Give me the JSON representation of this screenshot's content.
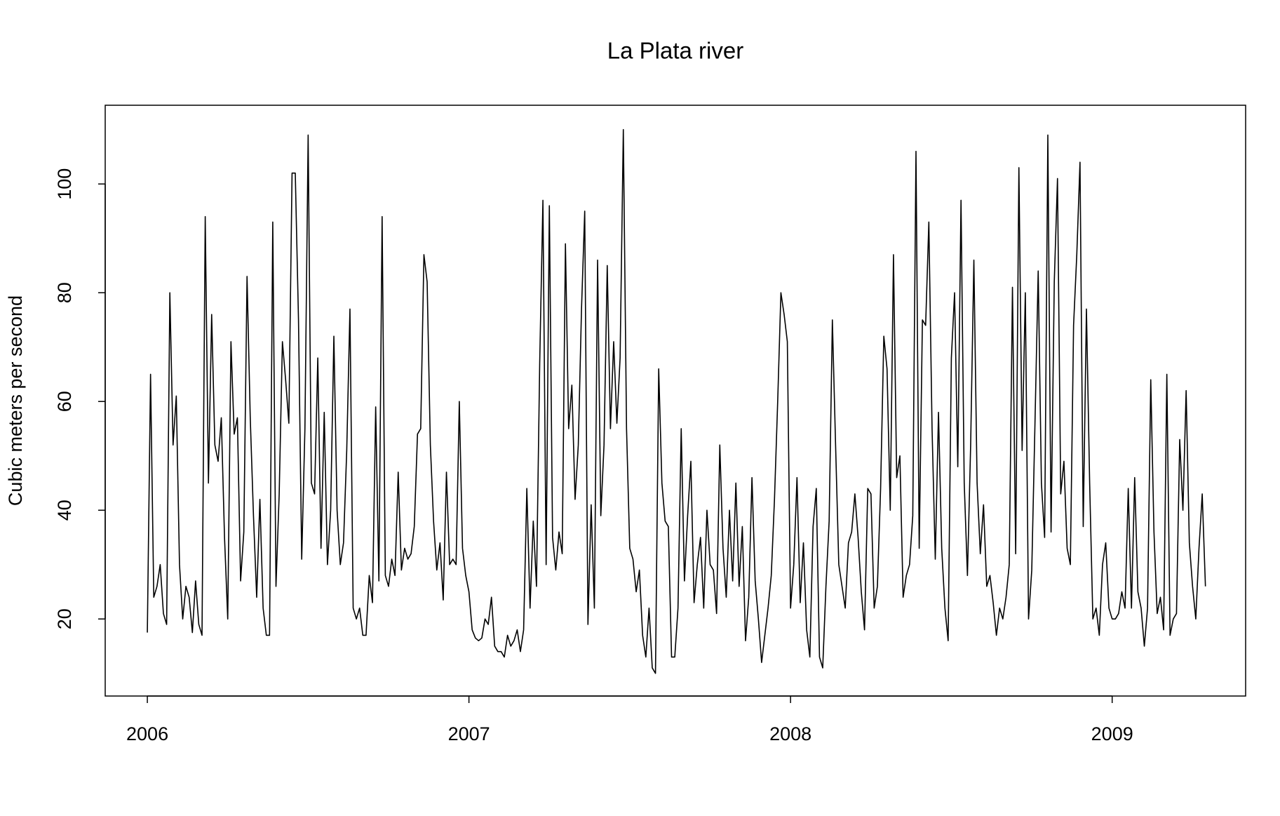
{
  "chart_data": {
    "type": "line",
    "title": "La Plata river",
    "ylabel": "Cubic meters per second",
    "color": "#000000",
    "grid": false,
    "xlim": [
      2005.869,
      2009.415
    ],
    "xticks": [
      2006,
      2007,
      2008,
      2009
    ],
    "ylim": [
      5.83,
      114.48
    ],
    "yticks": [
      20,
      40,
      60,
      80,
      100
    ],
    "x": [
      2006,
      2006.01,
      2006.02,
      2006.03,
      2006.04,
      2006.05,
      2006.06,
      2006.07,
      2006.08,
      2006.09,
      2006.1,
      2006.11,
      2006.12,
      2006.13,
      2006.14,
      2006.15,
      2006.16,
      2006.17,
      2006.18,
      2006.19,
      2006.2,
      2006.21,
      2006.22,
      2006.23,
      2006.24,
      2006.25,
      2006.26,
      2006.27,
      2006.28,
      2006.29,
      2006.3,
      2006.31,
      2006.32,
      2006.33,
      2006.34,
      2006.35,
      2006.36,
      2006.37,
      2006.38,
      2006.39,
      2006.4,
      2006.41,
      2006.42,
      2006.43,
      2006.44,
      2006.45,
      2006.46,
      2006.47,
      2006.48,
      2006.49,
      2006.5,
      2006.51,
      2006.52,
      2006.53,
      2006.54,
      2006.55,
      2006.56,
      2006.57,
      2006.58,
      2006.59,
      2006.6,
      2006.61,
      2006.62,
      2006.63,
      2006.64,
      2006.65,
      2006.66,
      2006.67,
      2006.68,
      2006.69,
      2006.7,
      2006.71,
      2006.72,
      2006.73,
      2006.74,
      2006.75,
      2006.76,
      2006.77,
      2006.78,
      2006.79,
      2006.8,
      2006.81,
      2006.82,
      2006.83,
      2006.84,
      2006.85,
      2006.86,
      2006.87,
      2006.88,
      2006.89,
      2006.9,
      2006.91,
      2006.92,
      2006.93,
      2006.94,
      2006.95,
      2006.96,
      2006.97,
      2006.98,
      2006.99,
      2007,
      2007.01,
      2007.02,
      2007.03,
      2007.04,
      2007.05,
      2007.06,
      2007.07,
      2007.08,
      2007.09,
      2007.1,
      2007.11,
      2007.12,
      2007.13,
      2007.14,
      2007.15,
      2007.16,
      2007.17,
      2007.18,
      2007.19,
      2007.2,
      2007.21,
      2007.22,
      2007.23,
      2007.24,
      2007.25,
      2007.26,
      2007.27,
      2007.28,
      2007.29,
      2007.3,
      2007.31,
      2007.32,
      2007.33,
      2007.34,
      2007.35,
      2007.36,
      2007.37,
      2007.38,
      2007.39,
      2007.4,
      2007.41,
      2007.42,
      2007.43,
      2007.44,
      2007.45,
      2007.46,
      2007.47,
      2007.48,
      2007.49,
      2007.5,
      2007.51,
      2007.52,
      2007.53,
      2007.54,
      2007.55,
      2007.56,
      2007.57,
      2007.58,
      2007.59,
      2007.6,
      2007.61,
      2007.62,
      2007.63,
      2007.64,
      2007.65,
      2007.66,
      2007.67,
      2007.68,
      2007.69,
      2007.7,
      2007.71,
      2007.72,
      2007.73,
      2007.74,
      2007.75,
      2007.76,
      2007.77,
      2007.78,
      2007.79,
      2007.8,
      2007.81,
      2007.82,
      2007.83,
      2007.84,
      2007.85,
      2007.86,
      2007.87,
      2007.88,
      2007.89,
      2007.9,
      2007.91,
      2007.92,
      2007.93,
      2007.94,
      2007.95,
      2007.96,
      2007.97,
      2007.98,
      2007.99,
      2008,
      2008.01,
      2008.02,
      2008.03,
      2008.04,
      2008.05,
      2008.06,
      2008.07,
      2008.08,
      2008.09,
      2008.1,
      2008.11,
      2008.12,
      2008.13,
      2008.14,
      2008.15,
      2008.16,
      2008.17,
      2008.18,
      2008.19,
      2008.2,
      2008.21,
      2008.22,
      2008.23,
      2008.24,
      2008.25,
      2008.26,
      2008.27,
      2008.28,
      2008.29,
      2008.3,
      2008.31,
      2008.32,
      2008.33,
      2008.34,
      2008.35,
      2008.36,
      2008.37,
      2008.38,
      2008.39,
      2008.4,
      2008.41,
      2008.42,
      2008.43,
      2008.44,
      2008.45,
      2008.46,
      2008.47,
      2008.48,
      2008.49,
      2008.5,
      2008.51,
      2008.52,
      2008.53,
      2008.54,
      2008.55,
      2008.56,
      2008.57,
      2008.58,
      2008.59,
      2008.6,
      2008.61,
      2008.62,
      2008.63,
      2008.64,
      2008.65,
      2008.66,
      2008.67,
      2008.68,
      2008.69,
      2008.7,
      2008.71,
      2008.72,
      2008.73,
      2008.74,
      2008.75,
      2008.76,
      2008.77,
      2008.78,
      2008.79,
      2008.8,
      2008.81,
      2008.82,
      2008.83,
      2008.84,
      2008.85,
      2008.86,
      2008.87,
      2008.88,
      2008.89,
      2008.9,
      2008.91,
      2008.92,
      2008.93,
      2008.94,
      2008.95,
      2008.96,
      2008.97,
      2008.98,
      2008.99,
      2009,
      2009.01,
      2009.02,
      2009.03,
      2009.04,
      2009.05,
      2009.06,
      2009.07,
      2009.08,
      2009.09,
      2009.1,
      2009.11,
      2009.12,
      2009.13,
      2009.14,
      2009.15,
      2009.16,
      2009.17,
      2009.18,
      2009.19,
      2009.2,
      2009.21,
      2009.22,
      2009.23,
      2009.24,
      2009.25,
      2009.26,
      2009.27,
      2009.28,
      2009.29
    ],
    "values": [
      17.5,
      65,
      24,
      26,
      30,
      21,
      19,
      80,
      52,
      61,
      30,
      20,
      26,
      24,
      17.5,
      27,
      19,
      17,
      94,
      45,
      76,
      52,
      49,
      57,
      35,
      20,
      71,
      54,
      57,
      27,
      36,
      83,
      57,
      39,
      24,
      42,
      22,
      17,
      17,
      93,
      26,
      43,
      71,
      64,
      56,
      102,
      102,
      75,
      31,
      55,
      109,
      45,
      43,
      68,
      33,
      58,
      30,
      40,
      72,
      40,
      30,
      34,
      51,
      77,
      22,
      20,
      22,
      17,
      17,
      28,
      23,
      59,
      27,
      94,
      28,
      26,
      31,
      28,
      47,
      29,
      33,
      31,
      32,
      37,
      54,
      55,
      87,
      82,
      52,
      38,
      29,
      34,
      23.5,
      47,
      30,
      31,
      30,
      60,
      33,
      28,
      25,
      18,
      16.5,
      16,
      16.5,
      20,
      19,
      24,
      15,
      14,
      14,
      13,
      17,
      15,
      16,
      18,
      14,
      18,
      44,
      22,
      38,
      26,
      67,
      97,
      30,
      96,
      35,
      29,
      36,
      32,
      89,
      55,
      63,
      42,
      52,
      77,
      95,
      19,
      41,
      22,
      86,
      39,
      52,
      85,
      55,
      71,
      56,
      68,
      110,
      55,
      33,
      31,
      25,
      29,
      17,
      13,
      22,
      11,
      10,
      66,
      45,
      38,
      37,
      13,
      13,
      22,
      55,
      27,
      39,
      49,
      23,
      30,
      35,
      22,
      40,
      30,
      29,
      21,
      52,
      33,
      24,
      40,
      27,
      45,
      26,
      37,
      16,
      24,
      46,
      27,
      20,
      12,
      17,
      22,
      28,
      42,
      60,
      80,
      76,
      71,
      22,
      30,
      46,
      23,
      34,
      18,
      13,
      37,
      44,
      13,
      11,
      26,
      38,
      75,
      52,
      30,
      26,
      22,
      34,
      36,
      43,
      35,
      25,
      18,
      44,
      43,
      22,
      26,
      44,
      72,
      66,
      40,
      87,
      46,
      50,
      24,
      28,
      30,
      39,
      106,
      33,
      75,
      74,
      93,
      55,
      31,
      58,
      33,
      22,
      16,
      68,
      80,
      48,
      97,
      45,
      28,
      52,
      86,
      45,
      32,
      41,
      26,
      28,
      23,
      17,
      22,
      20,
      24,
      30,
      81,
      32,
      103,
      51,
      80,
      20,
      29,
      56,
      84,
      45,
      35,
      109,
      36,
      82,
      101,
      43,
      49,
      33,
      30,
      74,
      87,
      104,
      37,
      77,
      45,
      20,
      22,
      17,
      30,
      34,
      22,
      20,
      20,
      21,
      25,
      22,
      44,
      22,
      46,
      25,
      22,
      15,
      22,
      64,
      36,
      21,
      24,
      18,
      65,
      17,
      20,
      21,
      53,
      40,
      62,
      34,
      26,
      20,
      33,
      43,
      26
    ]
  }
}
